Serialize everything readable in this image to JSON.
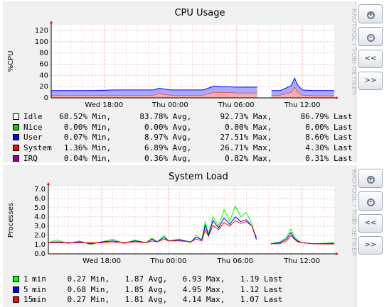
{
  "panels": {
    "cpu": {
      "side_label": "RRDTOOL / TOBI OETIKER",
      "legend": [
        {
          "name": "Idle",
          "color": "#ffffff",
          "min": "68.52%",
          "avg": "83.78%",
          "max": "92.73%",
          "last": "86.79%"
        },
        {
          "name": "Nice",
          "color": "#00cc00",
          "min": "0.00%",
          "avg": "0.00%",
          "max": "0.00%",
          "last": "0.00%"
        },
        {
          "name": "User",
          "color": "#0000ff",
          "min": "0.07%",
          "avg": "8.97%",
          "max": "27.51%",
          "last": "8.60%"
        },
        {
          "name": "System",
          "color": "#ff0000",
          "min": "1.36%",
          "avg": "6.89%",
          "max": "26.71%",
          "last": "4.30%"
        },
        {
          "name": "IRQ",
          "color": "#990099",
          "min": "0.04%",
          "avg": "0.36%",
          "max": "0.82%",
          "last": "0.31%"
        }
      ]
    },
    "load": {
      "side_label": "RRDTOOL / TOBI OETIKER",
      "legend": [
        {
          "name": "1",
          "unit": "min",
          "color": "#00ff00",
          "min": "0.27",
          "avg": "1.87",
          "max": "6.93",
          "last": "1.19"
        },
        {
          "name": "5",
          "unit": "min",
          "color": "#0000ff",
          "min": "0.68",
          "avg": "1.85",
          "max": "4.95",
          "last": "1.12"
        },
        {
          "name": "15",
          "unit": "min",
          "color": "#ff0000",
          "min": "0.27",
          "avg": "1.81",
          "max": "4.14",
          "last": "1.07"
        }
      ]
    }
  },
  "legend_words": {
    "min": "Min,",
    "avg": "Avg,",
    "max": "Max,",
    "last": "Last"
  },
  "buttons": {
    "zoom_in": "+",
    "zoom_out": "-",
    "back": "<<",
    "forward": ">>"
  },
  "chart_data": [
    {
      "type": "area",
      "title": "CPU Usage",
      "ylabel": "%CPU",
      "xlabel": "",
      "ylim": [
        0,
        130
      ],
      "yticks": [
        0,
        20,
        40,
        60,
        80,
        100,
        120
      ],
      "x_ticks": [
        "Wed 18:00",
        "Thu 00:00",
        "Thu 06:00",
        "Thu 12:00"
      ],
      "x_tick_hours": [
        18,
        24,
        30,
        36
      ],
      "x_range_hours": [
        13.2,
        38.9
      ],
      "grid": true,
      "stacked": true,
      "gap_hours": [
        32.0,
        33.2
      ],
      "series": [
        {
          "name": "System",
          "color": "#ff0000",
          "x": [
            13.2,
            15.0,
            17.0,
            19.0,
            21.0,
            22.5,
            23.0,
            24.0,
            26.0,
            27.0,
            28.0,
            29.0,
            30.0,
            31.0,
            31.9,
            33.2,
            34.0,
            34.6,
            35.0,
            35.3,
            35.6,
            36.0,
            37.0,
            38.9
          ],
          "values": [
            5,
            5,
            5,
            5,
            5,
            5,
            8,
            5,
            5,
            5,
            10,
            10,
            9,
            9,
            9,
            5,
            5,
            8,
            10,
            20,
            10,
            5,
            4,
            4
          ]
        },
        {
          "name": "User",
          "color": "#0000ff",
          "x": [
            13.2,
            15.0,
            17.0,
            19.0,
            21.0,
            22.5,
            23.0,
            24.0,
            26.0,
            27.0,
            28.0,
            29.0,
            30.0,
            31.0,
            31.9,
            33.2,
            34.0,
            34.6,
            35.0,
            35.3,
            35.6,
            36.0,
            37.0,
            38.9
          ],
          "values": [
            8,
            8,
            8,
            9,
            9,
            9,
            9,
            9,
            9,
            9,
            11,
            10,
            10,
            10,
            10,
            8,
            8,
            10,
            12,
            15,
            12,
            9,
            9,
            9
          ]
        }
      ]
    },
    {
      "type": "line",
      "title": "System Load",
      "ylabel": "Processes",
      "xlabel": "",
      "ylim": [
        0,
        7.3
      ],
      "yticks": [
        0.0,
        1.0,
        2.0,
        3.0,
        4.0,
        5.0,
        6.0,
        7.0
      ],
      "x_ticks": [
        "Wed 18:00",
        "Thu 00:00",
        "Thu 06:00",
        "Thu 12:00"
      ],
      "x_tick_hours": [
        18,
        24,
        30,
        36
      ],
      "x_range_hours": [
        13.2,
        38.9
      ],
      "grid": true,
      "gap_hours": [
        32.0,
        33.2
      ],
      "series": [
        {
          "name": "1 min",
          "color": "#00ff00",
          "x": [
            13.2,
            14.0,
            15.0,
            16.0,
            17.0,
            18.0,
            19.0,
            20.0,
            21.0,
            22.0,
            22.5,
            23.0,
            23.6,
            24.0,
            25.0,
            26.0,
            26.5,
            27.0,
            27.3,
            27.6,
            28.0,
            28.5,
            29.0,
            29.5,
            30.0,
            30.5,
            31.0,
            31.5,
            31.9,
            33.2,
            34.0,
            34.6,
            35.0,
            35.3,
            35.6,
            36.0,
            37.0,
            38.9
          ],
          "values": [
            1.2,
            1.5,
            1.1,
            1.4,
            1.0,
            1.3,
            1.6,
            1.1,
            1.5,
            1.2,
            1.7,
            1.3,
            2.0,
            1.4,
            1.6,
            1.2,
            2.0,
            1.6,
            3.5,
            2.2,
            4.0,
            3.0,
            4.8,
            3.5,
            5.2,
            4.0,
            4.5,
            3.2,
            1.5,
            1.1,
            1.3,
            1.8,
            2.7,
            1.9,
            1.5,
            1.2,
            1.1,
            1.19
          ]
        },
        {
          "name": "5 min",
          "color": "#0000ff",
          "x": [
            13.2,
            14.0,
            15.0,
            16.0,
            17.0,
            18.0,
            19.0,
            20.0,
            21.0,
            22.0,
            22.5,
            23.0,
            23.6,
            24.0,
            25.0,
            26.0,
            26.5,
            27.0,
            27.3,
            27.6,
            28.0,
            28.5,
            29.0,
            29.5,
            30.0,
            30.5,
            31.0,
            31.5,
            31.9,
            33.2,
            34.0,
            34.6,
            35.0,
            35.3,
            35.6,
            36.0,
            37.0,
            38.9
          ],
          "values": [
            1.2,
            1.3,
            1.2,
            1.3,
            1.1,
            1.3,
            1.4,
            1.2,
            1.4,
            1.2,
            1.6,
            1.3,
            1.8,
            1.4,
            1.5,
            1.3,
            1.8,
            1.5,
            3.1,
            2.0,
            3.6,
            2.8,
            3.9,
            3.2,
            4.0,
            3.5,
            3.7,
            3.0,
            1.6,
            1.1,
            1.2,
            1.6,
            2.3,
            1.7,
            1.4,
            1.2,
            1.1,
            1.12
          ]
        },
        {
          "name": "15 min",
          "color": "#ff0000",
          "x": [
            13.2,
            14.0,
            15.0,
            16.0,
            17.0,
            18.0,
            19.0,
            20.0,
            21.0,
            22.0,
            22.5,
            23.0,
            23.6,
            24.0,
            25.0,
            26.0,
            26.5,
            27.0,
            27.3,
            27.6,
            28.0,
            28.5,
            29.0,
            29.5,
            30.0,
            30.5,
            31.0,
            31.5,
            31.9,
            33.2,
            34.0,
            34.6,
            35.0,
            35.3,
            35.6,
            36.0,
            37.0,
            38.9
          ],
          "values": [
            1.2,
            1.2,
            1.2,
            1.2,
            1.2,
            1.2,
            1.3,
            1.2,
            1.3,
            1.2,
            1.4,
            1.3,
            1.6,
            1.4,
            1.4,
            1.3,
            1.6,
            1.4,
            2.6,
            1.9,
            3.1,
            2.6,
            3.4,
            3.0,
            3.6,
            3.3,
            3.5,
            3.0,
            1.8,
            1.1,
            1.1,
            1.4,
            2.0,
            1.6,
            1.3,
            1.2,
            1.1,
            1.07
          ]
        }
      ]
    }
  ]
}
